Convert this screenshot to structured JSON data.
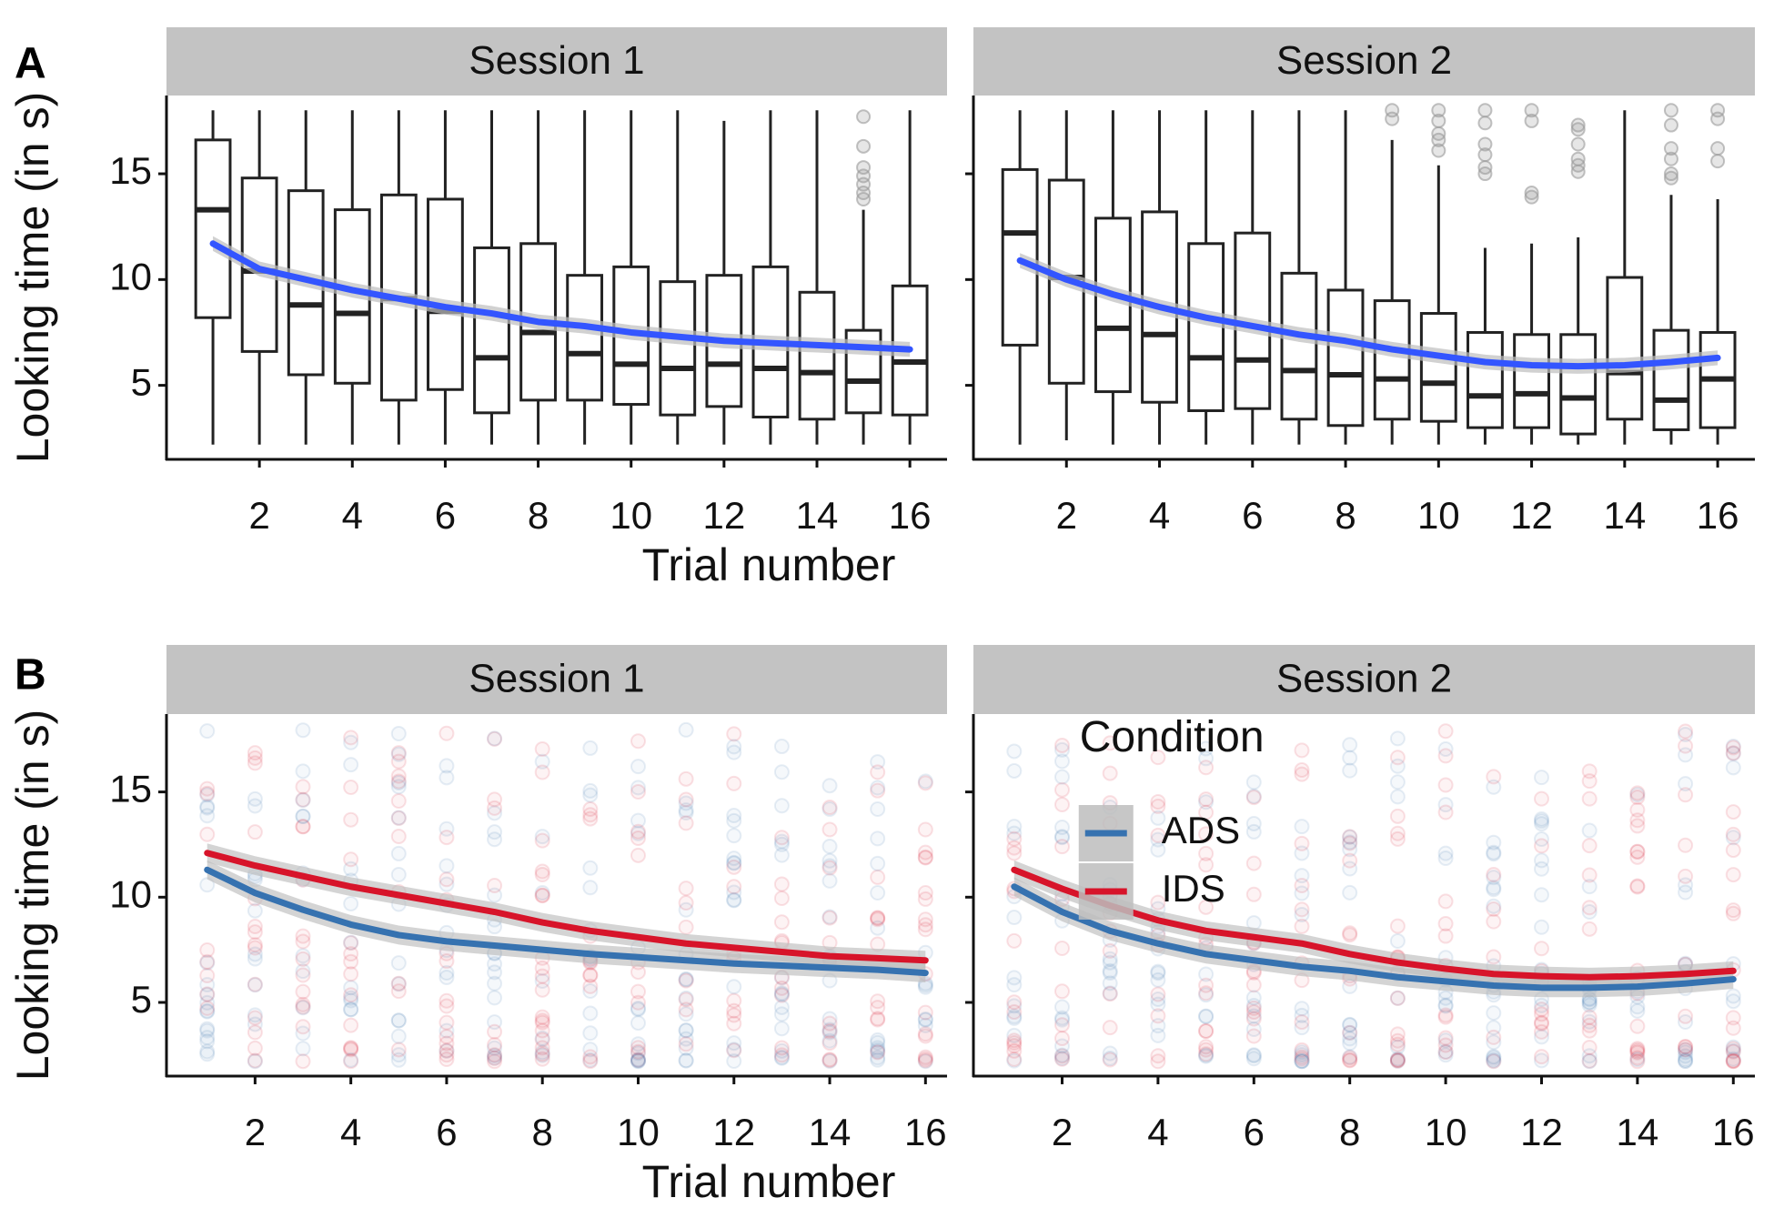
{
  "figure": {
    "x_label": "Trial number",
    "y_label": "Looking time (in s)",
    "legend_title": "Condition"
  },
  "colors": {
    "strip": "#c3c3c3",
    "axis": "#111111",
    "box": "#222222",
    "smooth_a": "#3355ff",
    "ribbon": "#bdbdbd",
    "ADS": "#3672b0",
    "IDS": "#d7142a",
    "outlier": "#9a9a9a"
  },
  "chart_data": [
    {
      "type": "box",
      "tag": "A",
      "ylim": [
        1.5,
        18.7
      ],
      "xlim": [
        0,
        16.8
      ],
      "y_ticks": [
        5,
        10,
        15
      ],
      "x_ticks": [
        2,
        4,
        6,
        8,
        10,
        12,
        14,
        16
      ],
      "facets": [
        {
          "label": "Session 1",
          "boxes": [
            {
              "x": 1,
              "q1": 8.2,
              "median": 13.3,
              "q3": 16.6,
              "lo": 2.2,
              "hi": 18
            },
            {
              "x": 2,
              "q1": 6.6,
              "median": 10.4,
              "q3": 14.8,
              "lo": 2.2,
              "hi": 18
            },
            {
              "x": 3,
              "q1": 5.5,
              "median": 8.8,
              "q3": 14.2,
              "lo": 2.2,
              "hi": 18
            },
            {
              "x": 4,
              "q1": 5.1,
              "median": 8.4,
              "q3": 13.3,
              "lo": 2.2,
              "hi": 18
            },
            {
              "x": 5,
              "q1": 4.3,
              "median": 9.1,
              "q3": 14.0,
              "lo": 2.2,
              "hi": 18
            },
            {
              "x": 6,
              "q1": 4.8,
              "median": 8.5,
              "q3": 13.8,
              "lo": 2.2,
              "hi": 18
            },
            {
              "x": 7,
              "q1": 3.7,
              "median": 6.3,
              "q3": 11.5,
              "lo": 2.2,
              "hi": 18
            },
            {
              "x": 8,
              "q1": 4.3,
              "median": 7.5,
              "q3": 11.7,
              "lo": 2.2,
              "hi": 18
            },
            {
              "x": 9,
              "q1": 4.3,
              "median": 6.5,
              "q3": 10.2,
              "lo": 2.2,
              "hi": 18
            },
            {
              "x": 10,
              "q1": 4.1,
              "median": 6.0,
              "q3": 10.6,
              "lo": 2.2,
              "hi": 18
            },
            {
              "x": 11,
              "q1": 3.6,
              "median": 5.8,
              "q3": 9.9,
              "lo": 2.2,
              "hi": 18
            },
            {
              "x": 12,
              "q1": 4.0,
              "median": 6.0,
              "q3": 10.2,
              "lo": 2.2,
              "hi": 17.5
            },
            {
              "x": 13,
              "q1": 3.5,
              "median": 5.8,
              "q3": 10.6,
              "lo": 2.2,
              "hi": 18
            },
            {
              "x": 14,
              "q1": 3.4,
              "median": 5.6,
              "q3": 9.4,
              "lo": 2.2,
              "hi": 18
            },
            {
              "x": 15,
              "q1": 3.7,
              "median": 5.2,
              "q3": 7.6,
              "lo": 2.2,
              "hi": 13.3,
              "outliers": [
                13.8,
                14.1,
                14.5,
                14.9,
                15.3,
                16.3,
                17.7
              ]
            },
            {
              "x": 16,
              "q1": 3.6,
              "median": 6.1,
              "q3": 9.7,
              "lo": 2.2,
              "hi": 18
            }
          ],
          "smooth": [
            [
              1,
              11.7
            ],
            [
              2,
              10.5
            ],
            [
              3,
              10.0
            ],
            [
              4,
              9.5
            ],
            [
              5,
              9.1
            ],
            [
              6,
              8.7
            ],
            [
              7,
              8.4
            ],
            [
              8,
              8.0
            ],
            [
              9,
              7.8
            ],
            [
              10,
              7.5
            ],
            [
              11,
              7.3
            ],
            [
              12,
              7.1
            ],
            [
              13,
              7.0
            ],
            [
              14,
              6.9
            ],
            [
              15,
              6.8
            ],
            [
              16,
              6.7
            ]
          ]
        },
        {
          "label": "Session 2",
          "boxes": [
            {
              "x": 1,
              "q1": 6.9,
              "median": 12.2,
              "q3": 15.2,
              "lo": 2.2,
              "hi": 18
            },
            {
              "x": 2,
              "q1": 5.1,
              "median": 10.1,
              "q3": 14.7,
              "lo": 2.4,
              "hi": 18
            },
            {
              "x": 3,
              "q1": 4.7,
              "median": 7.7,
              "q3": 12.9,
              "lo": 2.2,
              "hi": 18
            },
            {
              "x": 4,
              "q1": 4.2,
              "median": 7.4,
              "q3": 13.2,
              "lo": 2.2,
              "hi": 18
            },
            {
              "x": 5,
              "q1": 3.8,
              "median": 6.3,
              "q3": 11.7,
              "lo": 2.2,
              "hi": 18
            },
            {
              "x": 6,
              "q1": 3.9,
              "median": 6.2,
              "q3": 12.2,
              "lo": 2.2,
              "hi": 18
            },
            {
              "x": 7,
              "q1": 3.4,
              "median": 5.7,
              "q3": 10.3,
              "lo": 2.2,
              "hi": 18
            },
            {
              "x": 8,
              "q1": 3.1,
              "median": 5.5,
              "q3": 9.5,
              "lo": 2.2,
              "hi": 18
            },
            {
              "x": 9,
              "q1": 3.4,
              "median": 5.3,
              "q3": 9.0,
              "lo": 2.2,
              "hi": 16.6,
              "outliers": [
                17.6,
                18.0
              ]
            },
            {
              "x": 10,
              "q1": 3.3,
              "median": 5.1,
              "q3": 8.4,
              "lo": 2.2,
              "hi": 15.4,
              "outliers": [
                16.1,
                16.6,
                16.9,
                17.5,
                18.0
              ]
            },
            {
              "x": 11,
              "q1": 3.0,
              "median": 4.5,
              "q3": 7.5,
              "lo": 2.2,
              "hi": 11.5,
              "outliers": [
                15.0,
                15.3,
                15.9,
                16.4,
                17.4,
                18.0
              ]
            },
            {
              "x": 12,
              "q1": 3.0,
              "median": 4.6,
              "q3": 7.4,
              "lo": 2.2,
              "hi": 11.7,
              "outliers": [
                13.9,
                14.1,
                17.5,
                18.0
              ]
            },
            {
              "x": 13,
              "q1": 2.7,
              "median": 4.4,
              "q3": 7.4,
              "lo": 2.2,
              "hi": 12.0,
              "outliers": [
                15.1,
                15.4,
                15.7,
                16.4,
                17.1,
                17.3
              ]
            },
            {
              "x": 14,
              "q1": 3.4,
              "median": 5.6,
              "q3": 10.1,
              "lo": 2.2,
              "hi": 18
            },
            {
              "x": 15,
              "q1": 2.9,
              "median": 4.3,
              "q3": 7.6,
              "lo": 2.2,
              "hi": 14.0,
              "outliers": [
                14.8,
                15.0,
                15.7,
                16.2,
                17.3,
                18.0
              ]
            },
            {
              "x": 16,
              "q1": 3.0,
              "median": 5.3,
              "q3": 7.5,
              "lo": 2.2,
              "hi": 13.8,
              "outliers": [
                15.6,
                16.2,
                17.6,
                18.0
              ]
            }
          ],
          "smooth": [
            [
              1,
              10.9
            ],
            [
              2,
              10.0
            ],
            [
              3,
              9.3
            ],
            [
              4,
              8.7
            ],
            [
              5,
              8.2
            ],
            [
              6,
              7.8
            ],
            [
              7,
              7.4
            ],
            [
              8,
              7.1
            ],
            [
              9,
              6.7
            ],
            [
              10,
              6.4
            ],
            [
              11,
              6.1
            ],
            [
              12,
              5.95
            ],
            [
              13,
              5.9
            ],
            [
              14,
              5.95
            ],
            [
              15,
              6.1
            ],
            [
              16,
              6.3
            ]
          ]
        }
      ]
    },
    {
      "type": "scatter",
      "tag": "B",
      "ylim": [
        1.5,
        18.7
      ],
      "xlim": [
        0.15,
        16.45
      ],
      "y_ticks": [
        5,
        10,
        15
      ],
      "x_ticks": [
        2,
        4,
        6,
        8,
        10,
        12,
        14,
        16
      ],
      "legend": {
        "title": "Condition",
        "items": [
          "ADS",
          "IDS"
        ],
        "position": "top-right"
      },
      "point_range": [
        2.2,
        18.0
      ],
      "facets": [
        {
          "label": "Session 1",
          "series": [
            {
              "name": "ADS",
              "smooth": [
                [
                  1,
                  11.3
                ],
                [
                  2,
                  10.2
                ],
                [
                  3,
                  9.4
                ],
                [
                  4,
                  8.7
                ],
                [
                  5,
                  8.2
                ],
                [
                  6,
                  7.9
                ],
                [
                  7,
                  7.7
                ],
                [
                  8,
                  7.5
                ],
                [
                  9,
                  7.3
                ],
                [
                  10,
                  7.15
                ],
                [
                  11,
                  7.0
                ],
                [
                  12,
                  6.85
                ],
                [
                  13,
                  6.75
                ],
                [
                  14,
                  6.65
                ],
                [
                  15,
                  6.55
                ],
                [
                  16,
                  6.4
                ]
              ]
            },
            {
              "name": "IDS",
              "smooth": [
                [
                  1,
                  12.1
                ],
                [
                  2,
                  11.5
                ],
                [
                  3,
                  11.0
                ],
                [
                  4,
                  10.5
                ],
                [
                  5,
                  10.1
                ],
                [
                  6,
                  9.7
                ],
                [
                  7,
                  9.3
                ],
                [
                  8,
                  8.8
                ],
                [
                  9,
                  8.4
                ],
                [
                  10,
                  8.1
                ],
                [
                  11,
                  7.8
                ],
                [
                  12,
                  7.6
                ],
                [
                  13,
                  7.4
                ],
                [
                  14,
                  7.2
                ],
                [
                  15,
                  7.1
                ],
                [
                  16,
                  7.0
                ]
              ]
            }
          ]
        },
        {
          "label": "Session 2",
          "series": [
            {
              "name": "ADS",
              "smooth": [
                [
                  1,
                  10.5
                ],
                [
                  2,
                  9.3
                ],
                [
                  3,
                  8.4
                ],
                [
                  4,
                  7.8
                ],
                [
                  5,
                  7.3
                ],
                [
                  6,
                  7.0
                ],
                [
                  7,
                  6.7
                ],
                [
                  8,
                  6.5
                ],
                [
                  9,
                  6.2
                ],
                [
                  10,
                  6.0
                ],
                [
                  11,
                  5.8
                ],
                [
                  12,
                  5.7
                ],
                [
                  13,
                  5.7
                ],
                [
                  14,
                  5.75
                ],
                [
                  15,
                  5.9
                ],
                [
                  16,
                  6.1
                ]
              ]
            },
            {
              "name": "IDS",
              "smooth": [
                [
                  1,
                  11.3
                ],
                [
                  2,
                  10.4
                ],
                [
                  3,
                  9.6
                ],
                [
                  4,
                  8.9
                ],
                [
                  5,
                  8.4
                ],
                [
                  6,
                  8.1
                ],
                [
                  7,
                  7.8
                ],
                [
                  8,
                  7.3
                ],
                [
                  9,
                  6.9
                ],
                [
                  10,
                  6.6
                ],
                [
                  11,
                  6.35
                ],
                [
                  12,
                  6.25
                ],
                [
                  13,
                  6.2
                ],
                [
                  14,
                  6.25
                ],
                [
                  15,
                  6.35
                ],
                [
                  16,
                  6.5
                ]
              ]
            }
          ]
        }
      ]
    }
  ]
}
